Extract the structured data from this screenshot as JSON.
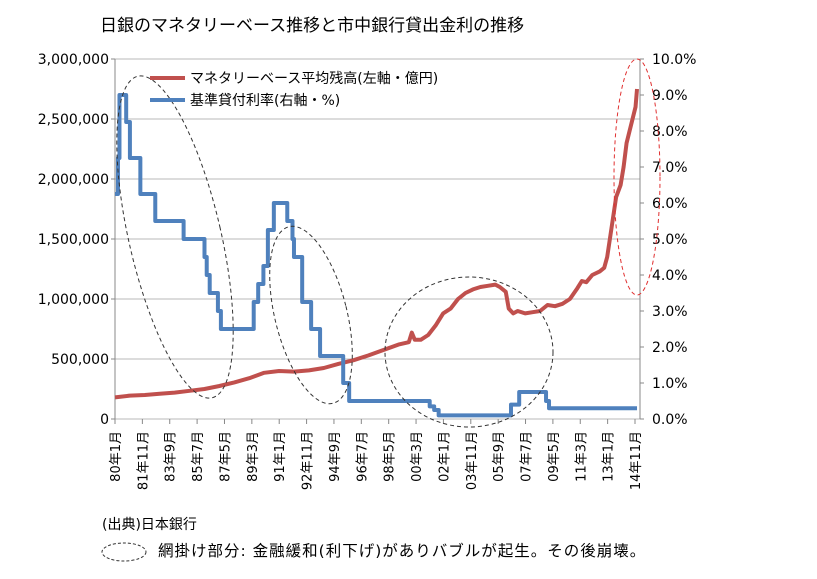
{
  "chart_data": {
    "type": "line",
    "title": "日銀のマネタリーベース推移と市中銀行貸出金利の推移",
    "x_tick_labels": [
      "80年1月",
      "81年11月",
      "83年9月",
      "85年7月",
      "87年5月",
      "89年3月",
      "91年1月",
      "92年11月",
      "94年9月",
      "96年7月",
      "98年5月",
      "00年3月",
      "02年1月",
      "03年11月",
      "05年9月",
      "07年7月",
      "09年5月",
      "11年3月",
      "13年1月",
      "14年11月"
    ],
    "y_left": {
      "label": "",
      "ticks": [
        "0",
        "500,000",
        "1,000,000",
        "1,500,000",
        "2,000,000",
        "2,500,000",
        "3,000,000"
      ],
      "range": [
        0,
        3000000
      ]
    },
    "y_right": {
      "label": "",
      "ticks": [
        "0.0%",
        "1.0%",
        "2.0%",
        "3.0%",
        "4.0%",
        "5.0%",
        "6.0%",
        "7.0%",
        "8.0%",
        "9.0%",
        "10.0%"
      ],
      "range": [
        0,
        10
      ]
    },
    "series": [
      {
        "name": "マネタリーベース平均残高(左軸・億円)",
        "axis": "left",
        "color": "#c0504d",
        "points": [
          [
            1980.0,
            180000
          ],
          [
            1981.0,
            195000
          ],
          [
            1982.0,
            200000
          ],
          [
            1983.0,
            210000
          ],
          [
            1984.0,
            220000
          ],
          [
            1985.0,
            235000
          ],
          [
            1986.0,
            250000
          ],
          [
            1987.0,
            275000
          ],
          [
            1988.0,
            305000
          ],
          [
            1989.0,
            340000
          ],
          [
            1990.0,
            385000
          ],
          [
            1991.0,
            400000
          ],
          [
            1992.0,
            395000
          ],
          [
            1993.0,
            405000
          ],
          [
            1994.0,
            425000
          ],
          [
            1995.0,
            460000
          ],
          [
            1996.0,
            490000
          ],
          [
            1997.0,
            530000
          ],
          [
            1998.0,
            575000
          ],
          [
            1999.0,
            620000
          ],
          [
            1999.7,
            640000
          ],
          [
            1999.9,
            720000
          ],
          [
            2000.1,
            660000
          ],
          [
            2000.5,
            660000
          ],
          [
            2001.0,
            700000
          ],
          [
            2001.5,
            780000
          ],
          [
            2002.0,
            880000
          ],
          [
            2002.5,
            920000
          ],
          [
            2003.0,
            1000000
          ],
          [
            2003.5,
            1050000
          ],
          [
            2004.0,
            1080000
          ],
          [
            2004.5,
            1100000
          ],
          [
            2005.0,
            1110000
          ],
          [
            2005.5,
            1120000
          ],
          [
            2005.8,
            1100000
          ],
          [
            2006.2,
            1060000
          ],
          [
            2006.4,
            920000
          ],
          [
            2006.7,
            880000
          ],
          [
            2007.0,
            900000
          ],
          [
            2007.5,
            880000
          ],
          [
            2008.0,
            890000
          ],
          [
            2008.5,
            900000
          ],
          [
            2009.0,
            950000
          ],
          [
            2009.5,
            940000
          ],
          [
            2010.0,
            960000
          ],
          [
            2010.5,
            1000000
          ],
          [
            2011.0,
            1090000
          ],
          [
            2011.3,
            1150000
          ],
          [
            2011.6,
            1140000
          ],
          [
            2012.0,
            1200000
          ],
          [
            2012.5,
            1230000
          ],
          [
            2012.8,
            1260000
          ],
          [
            2013.0,
            1350000
          ],
          [
            2013.3,
            1600000
          ],
          [
            2013.6,
            1850000
          ],
          [
            2013.9,
            1950000
          ],
          [
            2014.1,
            2100000
          ],
          [
            2014.3,
            2300000
          ],
          [
            2014.5,
            2400000
          ],
          [
            2014.7,
            2500000
          ],
          [
            2014.9,
            2600000
          ],
          [
            2015.0,
            2750000
          ]
        ]
      },
      {
        "name": "基準貸付利率(右軸・%)",
        "axis": "right",
        "color": "#4f81bd",
        "points": [
          [
            1980.0,
            6.25
          ],
          [
            1980.2,
            7.25
          ],
          [
            1980.3,
            9.0
          ],
          [
            1980.7,
            9.0
          ],
          [
            1980.75,
            8.25
          ],
          [
            1980.95,
            8.25
          ],
          [
            1981.0,
            7.25
          ],
          [
            1981.6,
            7.25
          ],
          [
            1981.7,
            6.25
          ],
          [
            1982.6,
            6.25
          ],
          [
            1982.7,
            5.5
          ],
          [
            1984.55,
            5.5
          ],
          [
            1984.6,
            5.0
          ],
          [
            1985.95,
            5.0
          ],
          [
            1986.0,
            4.5
          ],
          [
            1986.15,
            4.0
          ],
          [
            1986.35,
            3.5
          ],
          [
            1986.85,
            3.5
          ],
          [
            1986.9,
            3.0
          ],
          [
            1987.1,
            2.5
          ],
          [
            1989.25,
            2.5
          ],
          [
            1989.3,
            3.25
          ],
          [
            1989.6,
            3.75
          ],
          [
            1989.95,
            4.25
          ],
          [
            1990.25,
            5.25
          ],
          [
            1990.65,
            6.0
          ],
          [
            1991.5,
            6.0
          ],
          [
            1991.55,
            5.5
          ],
          [
            1991.85,
            5.5
          ],
          [
            1991.9,
            5.0
          ],
          [
            1992.0,
            4.5
          ],
          [
            1992.5,
            4.5
          ],
          [
            1992.55,
            3.25
          ],
          [
            1993.1,
            3.25
          ],
          [
            1993.15,
            2.5
          ],
          [
            1993.7,
            2.5
          ],
          [
            1993.75,
            1.75
          ],
          [
            1995.25,
            1.75
          ],
          [
            1995.3,
            1.0
          ],
          [
            1995.65,
            1.0
          ],
          [
            1995.7,
            0.5
          ],
          [
            2001.0,
            0.5
          ],
          [
            2001.1,
            0.35
          ],
          [
            2001.4,
            0.25
          ],
          [
            2001.7,
            0.1
          ],
          [
            2006.5,
            0.1
          ],
          [
            2006.55,
            0.4
          ],
          [
            2007.0,
            0.4
          ],
          [
            2007.1,
            0.75
          ],
          [
            2008.8,
            0.75
          ],
          [
            2008.9,
            0.5
          ],
          [
            2009.1,
            0.3
          ],
          [
            2015.0,
            0.3
          ]
        ]
      }
    ],
    "annotations": [
      "網掛け部分: 金融緩和(利下げ)があり\nバブルが起生。その後崩壊。"
    ],
    "legend_position": "top-left"
  },
  "footer": {
    "source": "(出典)日本銀行",
    "note": "網掛け部分: 金融緩和(利下げ)がありバブルが起生。その後崩壊。"
  }
}
